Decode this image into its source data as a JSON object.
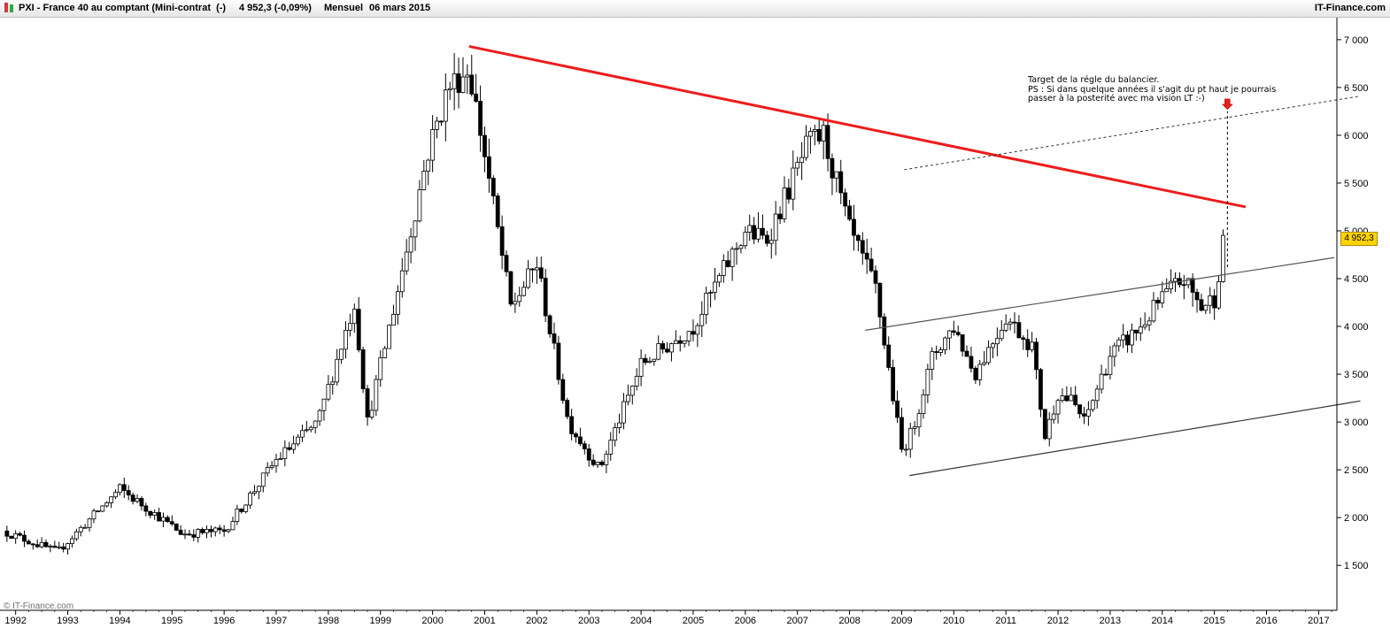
{
  "header": {
    "instrument": "PXI - France 40 au comptant (Mini-contrat  (-)",
    "quote": "4 952,3 (-0,09%)",
    "period": "Mensuel",
    "date": "06 mars 2015",
    "brand": "IT-Finance.com"
  },
  "footer": {
    "copyright": "© IT-Finance.com"
  },
  "annotation": {
    "line1": "Target de la régle du balancier.",
    "line2": "PS : Si dans quelque années il s'agit du pt haut je pourrais",
    "line3": "passer à la posterité avec ma vision LT :-)"
  },
  "price_tag": "4 952,3",
  "colors": {
    "trendline": "#ee1c1c",
    "candle_down": "#000000",
    "candle_up": "#ffffff",
    "marker": "#e02020",
    "price_tag": "#ffd400"
  },
  "chart_data": {
    "type": "candlestick",
    "x_tick_labels": [
      "1992",
      "1993",
      "1994",
      "1995",
      "1996",
      "1997",
      "1998",
      "1999",
      "2000",
      "2001",
      "2002",
      "2003",
      "2004",
      "2005",
      "2006",
      "2007",
      "2008",
      "2009",
      "2010",
      "2011",
      "2012",
      "2013",
      "2014",
      "2015",
      "2016",
      "2017"
    ],
    "y_tick_labels": [
      "1 500",
      "2 000",
      "2 500",
      "3 000",
      "3 500",
      "4 000",
      "4 500",
      "5 000",
      "5 500",
      "6 000",
      "6 500",
      "7 000"
    ],
    "y_ticks": [
      1500,
      2000,
      2500,
      3000,
      3500,
      4000,
      4500,
      5000,
      5500,
      6000,
      6500,
      7000
    ],
    "ylim": [
      1030,
      7230
    ],
    "xlim": [
      1991.7,
      2017.35
    ],
    "last_close": 4952.3,
    "key_points": [
      [
        1991.75,
        1860
      ],
      [
        1992.8,
        1640
      ],
      [
        1994.0,
        2300
      ],
      [
        1995.2,
        1830
      ],
      [
        1996.0,
        1860
      ],
      [
        1997.0,
        2600
      ],
      [
        1997.8,
        3000
      ],
      [
        1998.5,
        4250
      ],
      [
        1998.75,
        3000
      ],
      [
        1999.3,
        4300
      ],
      [
        1999.9,
        5800
      ],
      [
        2000.3,
        6500
      ],
      [
        2000.7,
        6700
      ],
      [
        2001.0,
        5800
      ],
      [
        2001.5,
        4200
      ],
      [
        2002.0,
        4650
      ],
      [
        2002.6,
        3000
      ],
      [
        2003.2,
        2500
      ],
      [
        2004.0,
        3600
      ],
      [
        2005.0,
        4000
      ],
      [
        2006.0,
        5000
      ],
      [
        2006.4,
        4900
      ],
      [
        2007.2,
        5900
      ],
      [
        2007.5,
        6000
      ],
      [
        2008.0,
        5000
      ],
      [
        2008.5,
        4400
      ],
      [
        2009.0,
        2700
      ],
      [
        2009.2,
        2900
      ],
      [
        2009.6,
        3700
      ],
      [
        2010.0,
        4000
      ],
      [
        2010.4,
        3500
      ],
      [
        2011.0,
        4100
      ],
      [
        2011.5,
        3800
      ],
      [
        2011.75,
        2850
      ],
      [
        2012.0,
        3300
      ],
      [
        2012.3,
        3200
      ],
      [
        2012.5,
        3000
      ],
      [
        2013.0,
        3700
      ],
      [
        2013.6,
        4000
      ],
      [
        2014.0,
        4300
      ],
      [
        2014.4,
        4500
      ],
      [
        2014.75,
        4200
      ],
      [
        2015.0,
        4300
      ],
      [
        2015.2,
        4952.3
      ]
    ],
    "trendlines": [
      {
        "name": "resistance",
        "from": [
          2000.7,
          6930
        ],
        "to": [
          2015.6,
          5250
        ]
      },
      {
        "name": "upper-channel",
        "from": [
          2008.3,
          3960
        ],
        "to": [
          2017.3,
          4720
        ]
      },
      {
        "name": "lower-channel",
        "from": [
          2009.15,
          2440
        ],
        "to": [
          2017.8,
          3220
        ]
      },
      {
        "name": "target-line",
        "from": [
          2009.05,
          5640
        ],
        "to": [
          2017.8,
          6410
        ]
      }
    ],
    "target": {
      "x": 2015.25,
      "from": 4620,
      "to": 6250
    }
  }
}
